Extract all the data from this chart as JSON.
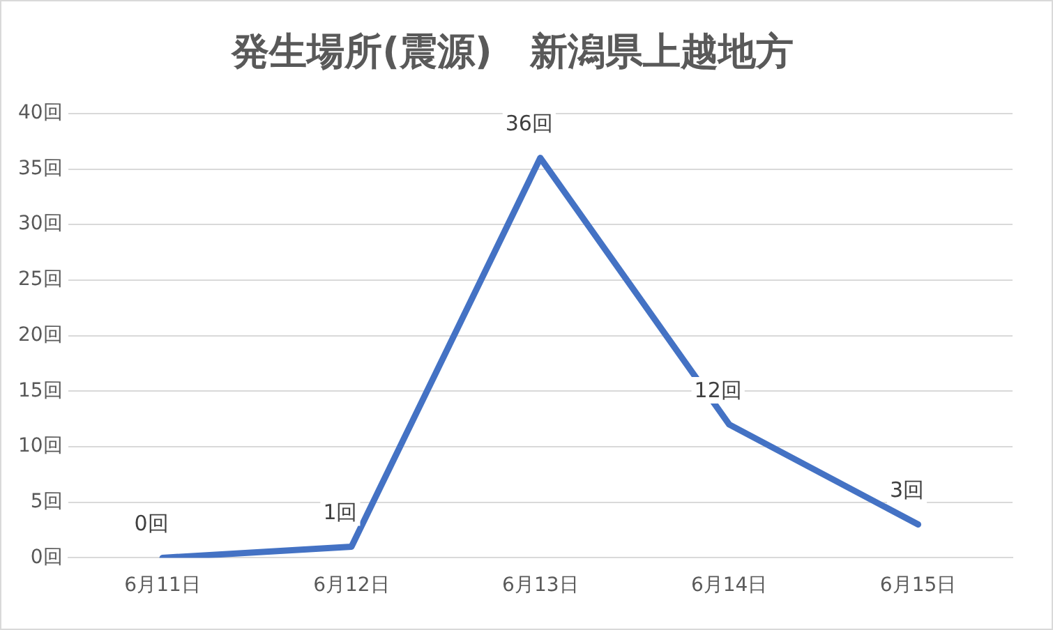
{
  "chart_data": {
    "type": "line",
    "title": "発生場所(震源)　新潟県上越地方",
    "categories": [
      "6月11日",
      "6月12日",
      "6月13日",
      "6月14日",
      "6月15日"
    ],
    "series": [
      {
        "color": "#4472c4",
        "values": [
          0,
          1,
          36,
          12,
          3
        ],
        "value_labels": [
          "0回",
          "1回",
          "36回",
          "12回",
          "3回"
        ]
      }
    ],
    "ylim": [
      0,
      40
    ],
    "yticks": [
      {
        "value": 0,
        "label": "0回"
      },
      {
        "value": 5,
        "label": "5回"
      },
      {
        "value": 10,
        "label": "10回"
      },
      {
        "value": 15,
        "label": "15回"
      },
      {
        "value": 20,
        "label": "20回"
      },
      {
        "value": 25,
        "label": "25回"
      },
      {
        "value": 30,
        "label": "30回"
      },
      {
        "value": 35,
        "label": "35回"
      },
      {
        "value": 40,
        "label": "40回"
      }
    ],
    "grid": "y",
    "legend": false,
    "marker": "none",
    "line_style": "solid"
  }
}
